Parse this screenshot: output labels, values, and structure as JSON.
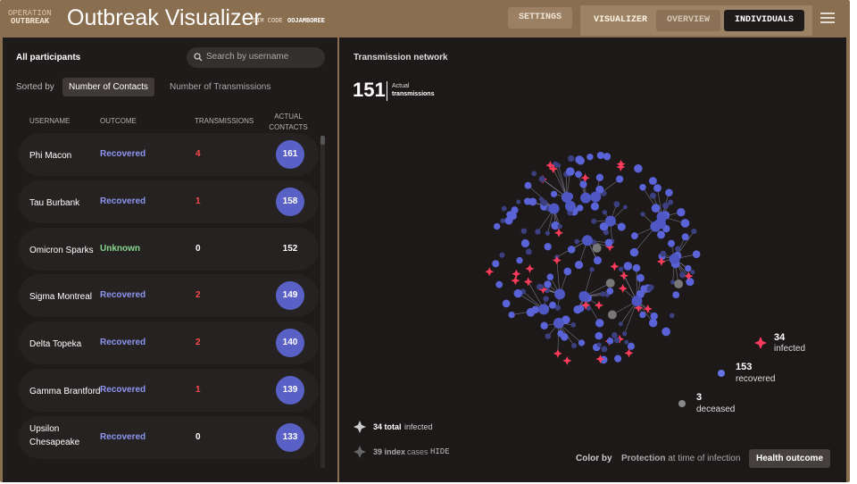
{
  "header": {
    "brand_top": "OPERATION",
    "brand_bottom": "OUTBREAK",
    "title": "Outbreak Visualizer",
    "sim_code_label": "SIM CODE",
    "sim_code": "OOJAMBOREE",
    "settings": "SETTINGS",
    "tabs": [
      "VISUALIZER",
      "OVERVIEW",
      "INDIVIDUALS"
    ]
  },
  "participants": {
    "heading": "All participants",
    "search_placeholder": "Search by username",
    "sorted_by": "Sorted by",
    "sort_options": [
      "Number of Contacts",
      "Number of Transmissions"
    ],
    "columns": [
      "USERNAME",
      "OUTCOME",
      "TRANSMISSIONS",
      "ACTUAL CONTACTS"
    ],
    "rows": [
      [
        "Phi Macon",
        "Recovered",
        4,
        161
      ],
      [
        "Tau Burbank",
        "Recovered",
        1,
        158
      ],
      [
        "Omicron Sparks",
        "Unknown",
        0,
        152
      ],
      [
        "Sigma Montreal",
        "Recovered",
        2,
        149
      ],
      [
        "Delta Topeka",
        "Recovered",
        2,
        140
      ],
      [
        "Gamma Brantford",
        "Recovered",
        1,
        139
      ],
      [
        "Upsilon Chesapeake",
        "Recovered",
        0,
        133
      ]
    ]
  },
  "network": {
    "title": "Transmission network",
    "count": 151,
    "count_label_top": "Actual",
    "count_label_bottom": "transmissions",
    "legend": [
      {
        "value": 34,
        "label": "infected"
      },
      {
        "value": 153,
        "label": "recovered"
      },
      {
        "value": 3,
        "label": "deceased"
      }
    ],
    "total_infected": "34 total",
    "total_infected_suffix": "infected",
    "index_cases": "39 index",
    "index_cases_suffix": "cases",
    "hide": "HIDE",
    "color_by": "Color by",
    "color_options": [
      {
        "strong": "Protection",
        "rest": "at time of infection"
      },
      "Health outcome"
    ]
  }
}
